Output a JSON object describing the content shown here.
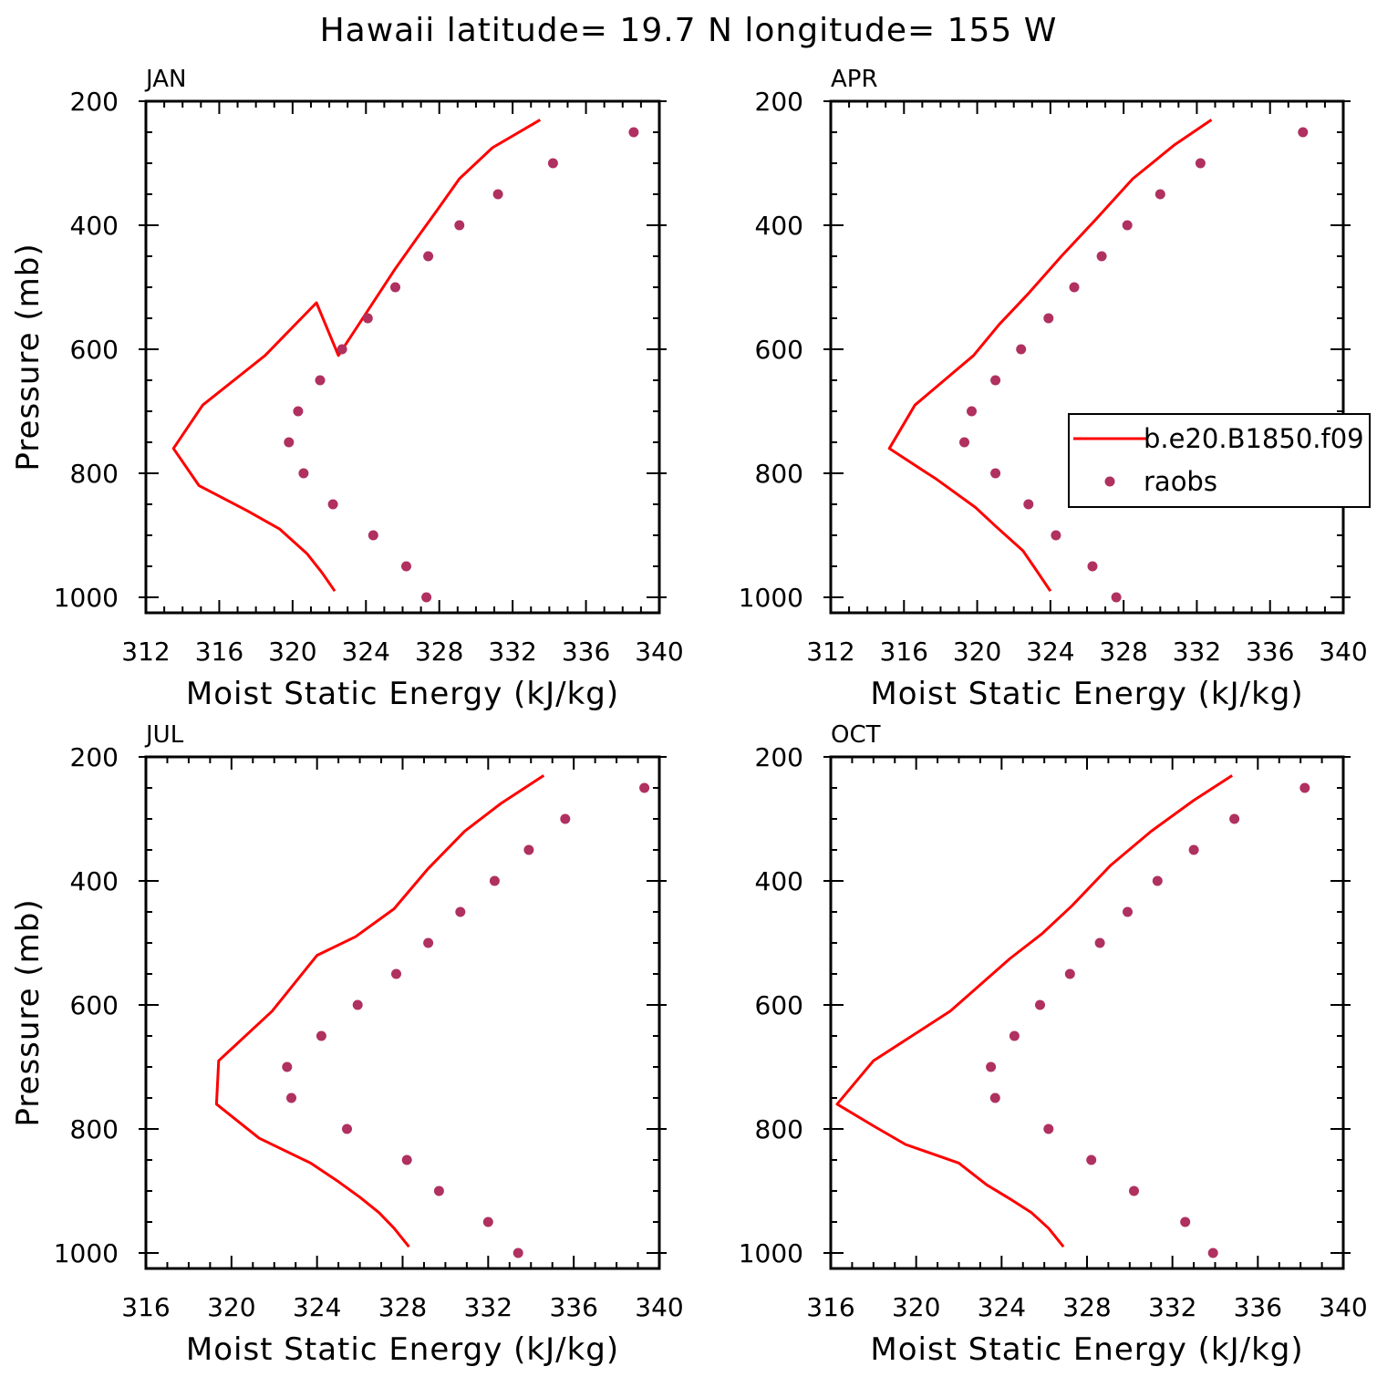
{
  "figure": {
    "title": "Hawaii  latitude= 19.7 N longitude= 155 W"
  },
  "legend": {
    "model_label": "b.e20.B1850.f09",
    "obs_label": "raobs"
  },
  "colors": {
    "model_line": "#ff0000",
    "obs_marker": "#b03060",
    "axis": "#000000",
    "background": "#ffffff"
  },
  "chart_data": [
    {
      "type": "line",
      "panel_label": "JAN",
      "xlabel": "Moist Static Energy (kJ/kg)",
      "ylabel": "Pressure (mb)",
      "xlim": [
        312,
        340
      ],
      "ylim": [
        1025,
        200
      ],
      "y_inverted": true,
      "xticks": [
        312,
        316,
        320,
        324,
        328,
        332,
        336,
        340
      ],
      "xtick_labels": [
        "312",
        "316",
        "320",
        "324",
        "328",
        "332",
        "336",
        "340"
      ],
      "yticks": [
        200,
        400,
        600,
        800,
        1000
      ],
      "ytick_labels": [
        "200",
        "400",
        "600",
        "800",
        "1000"
      ],
      "series": [
        {
          "name": "b.e20.B1850.f09",
          "kind": "line",
          "points": [
            [
              333.5,
              230
            ],
            [
              330.9,
              275
            ],
            [
              329.1,
              325
            ],
            [
              327.9,
              375
            ],
            [
              326.8,
              420
            ],
            [
              325.6,
              470
            ],
            [
              322.5,
              610
            ],
            [
              321.3,
              525
            ],
            [
              318.5,
              610
            ],
            [
              315.1,
              690
            ],
            [
              313.5,
              760
            ],
            [
              314.9,
              820
            ],
            [
              317.5,
              860
            ],
            [
              319.3,
              890
            ],
            [
              320.8,
              930
            ],
            [
              321.6,
              960
            ],
            [
              322.3,
              990
            ]
          ]
        },
        {
          "name": "raobs",
          "kind": "scatter",
          "points": [
            [
              338.6,
              250
            ],
            [
              334.2,
              300
            ],
            [
              331.2,
              350
            ],
            [
              329.1,
              400
            ],
            [
              327.4,
              450
            ],
            [
              325.6,
              500
            ],
            [
              324.1,
              550
            ],
            [
              322.7,
              600
            ],
            [
              321.5,
              650
            ],
            [
              320.3,
              700
            ],
            [
              319.8,
              750
            ],
            [
              320.6,
              800
            ],
            [
              322.2,
              850
            ],
            [
              324.4,
              900
            ],
            [
              326.2,
              950
            ],
            [
              327.3,
              1000
            ]
          ]
        }
      ]
    },
    {
      "type": "line",
      "panel_label": "APR",
      "xlabel": "Moist Static Energy (kJ/kg)",
      "ylabel": "",
      "xlim": [
        312,
        340
      ],
      "ylim": [
        1025,
        200
      ],
      "y_inverted": true,
      "xticks": [
        312,
        316,
        320,
        324,
        328,
        332,
        336,
        340
      ],
      "xtick_labels": [
        "312",
        "316",
        "320",
        "324",
        "328",
        "332",
        "336",
        "340"
      ],
      "yticks": [
        200,
        400,
        600,
        800,
        1000
      ],
      "ytick_labels": [
        "200",
        "400",
        "600",
        "800",
        "1000"
      ],
      "series": [
        {
          "name": "b.e20.B1850.f09",
          "kind": "line",
          "points": [
            [
              332.8,
              230
            ],
            [
              330.8,
              270
            ],
            [
              328.5,
              325
            ],
            [
              326.5,
              390
            ],
            [
              324.6,
              450
            ],
            [
              322.8,
              510
            ],
            [
              321.2,
              560
            ],
            [
              319.8,
              610
            ],
            [
              316.6,
              690
            ],
            [
              315.2,
              760
            ],
            [
              317.8,
              810
            ],
            [
              319.9,
              855
            ],
            [
              321.0,
              885
            ],
            [
              322.5,
              925
            ],
            [
              323.2,
              955
            ],
            [
              324.0,
              990
            ]
          ]
        },
        {
          "name": "raobs",
          "kind": "scatter",
          "points": [
            [
              337.8,
              250
            ],
            [
              332.2,
              300
            ],
            [
              330.0,
              350
            ],
            [
              328.2,
              400
            ],
            [
              326.8,
              450
            ],
            [
              325.3,
              500
            ],
            [
              323.9,
              550
            ],
            [
              322.4,
              600
            ],
            [
              321.0,
              650
            ],
            [
              319.7,
              700
            ],
            [
              319.3,
              750
            ],
            [
              321.0,
              800
            ],
            [
              322.8,
              850
            ],
            [
              324.3,
              900
            ],
            [
              326.3,
              950
            ],
            [
              327.6,
              1000
            ]
          ]
        }
      ]
    },
    {
      "type": "line",
      "panel_label": "JUL",
      "xlabel": "Moist Static Energy (kJ/kg)",
      "ylabel": "Pressure (mb)",
      "xlim": [
        316,
        340
      ],
      "ylim": [
        1025,
        200
      ],
      "y_inverted": true,
      "xticks": [
        316,
        320,
        324,
        328,
        332,
        336,
        340
      ],
      "xtick_labels": [
        "316",
        "320",
        "324",
        "328",
        "332",
        "336",
        "340"
      ],
      "yticks": [
        200,
        400,
        600,
        800,
        1000
      ],
      "ytick_labels": [
        "200",
        "400",
        "600",
        "800",
        "1000"
      ],
      "series": [
        {
          "name": "b.e20.B1850.f09",
          "kind": "line",
          "points": [
            [
              334.6,
              230
            ],
            [
              332.6,
              275
            ],
            [
              330.9,
              320
            ],
            [
              329.2,
              380
            ],
            [
              327.6,
              445
            ],
            [
              325.8,
              490
            ],
            [
              324.0,
              520
            ],
            [
              321.9,
              610
            ],
            [
              319.4,
              690
            ],
            [
              319.3,
              760
            ],
            [
              321.3,
              815
            ],
            [
              323.7,
              855
            ],
            [
              325.0,
              885
            ],
            [
              326.0,
              910
            ],
            [
              326.9,
              935
            ],
            [
              327.6,
              960
            ],
            [
              328.3,
              990
            ]
          ]
        },
        {
          "name": "raobs",
          "kind": "scatter",
          "points": [
            [
              339.3,
              250
            ],
            [
              335.6,
              300
            ],
            [
              333.9,
              350
            ],
            [
              332.3,
              400
            ],
            [
              330.7,
              450
            ],
            [
              329.2,
              500
            ],
            [
              327.7,
              550
            ],
            [
              325.9,
              600
            ],
            [
              324.2,
              650
            ],
            [
              322.6,
              700
            ],
            [
              322.8,
              750
            ],
            [
              325.4,
              800
            ],
            [
              328.2,
              850
            ],
            [
              329.7,
              900
            ],
            [
              332.0,
              950
            ],
            [
              333.4,
              1000
            ]
          ]
        }
      ]
    },
    {
      "type": "line",
      "panel_label": "OCT",
      "xlabel": "Moist Static Energy (kJ/kg)",
      "ylabel": "",
      "xlim": [
        316,
        340
      ],
      "ylim": [
        1025,
        200
      ],
      "y_inverted": true,
      "xticks": [
        316,
        320,
        324,
        328,
        332,
        336,
        340
      ],
      "xtick_labels": [
        "316",
        "320",
        "324",
        "328",
        "332",
        "336",
        "340"
      ],
      "yticks": [
        200,
        400,
        600,
        800,
        1000
      ],
      "ytick_labels": [
        "200",
        "400",
        "600",
        "800",
        "1000"
      ],
      "series": [
        {
          "name": "b.e20.B1850.f09",
          "kind": "line",
          "points": [
            [
              334.8,
              230
            ],
            [
              333.0,
              270
            ],
            [
              331.0,
              320
            ],
            [
              329.1,
              375
            ],
            [
              327.3,
              440
            ],
            [
              325.9,
              485
            ],
            [
              324.4,
              525
            ],
            [
              321.6,
              610
            ],
            [
              318.0,
              690
            ],
            [
              316.3,
              760
            ],
            [
              318.0,
              795
            ],
            [
              319.5,
              825
            ],
            [
              322.0,
              855
            ],
            [
              323.3,
              890
            ],
            [
              324.5,
              915
            ],
            [
              325.4,
              935
            ],
            [
              326.2,
              960
            ],
            [
              326.9,
              990
            ]
          ]
        },
        {
          "name": "raobs",
          "kind": "scatter",
          "points": [
            [
              338.2,
              250
            ],
            [
              334.9,
              300
            ],
            [
              333.0,
              350
            ],
            [
              331.3,
              400
            ],
            [
              329.9,
              450
            ],
            [
              328.6,
              500
            ],
            [
              327.2,
              550
            ],
            [
              325.8,
              600
            ],
            [
              324.6,
              650
            ],
            [
              323.5,
              700
            ],
            [
              323.7,
              750
            ],
            [
              326.2,
              800
            ],
            [
              328.2,
              850
            ],
            [
              330.2,
              900
            ],
            [
              332.6,
              950
            ],
            [
              333.9,
              1000
            ]
          ]
        }
      ]
    }
  ]
}
